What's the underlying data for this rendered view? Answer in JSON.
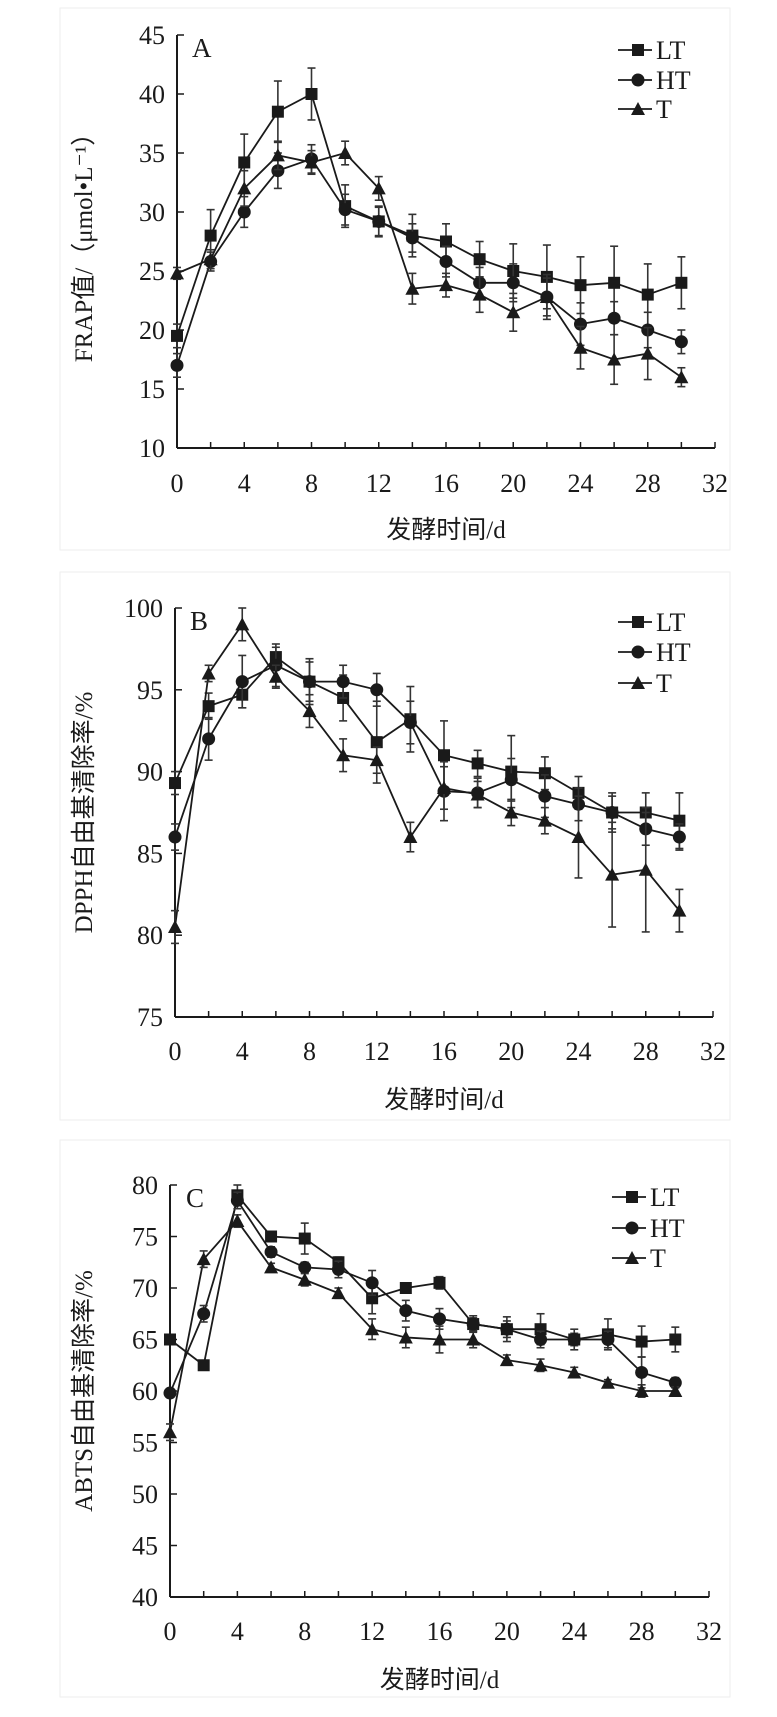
{
  "chart_data": [
    {
      "type": "line",
      "panel": "A",
      "title": "",
      "xlabel": "发酵时间/d",
      "ylabel": "FRAP值/（μmol•L⁻¹）",
      "xlim": [
        0,
        32
      ],
      "ylim": [
        10,
        45
      ],
      "xticks": [
        0,
        4,
        8,
        12,
        16,
        20,
        24,
        28,
        32
      ],
      "yticks": [
        10,
        15,
        20,
        25,
        30,
        35,
        40,
        45
      ],
      "legend_position": "top-right",
      "x": [
        0,
        2,
        4,
        6,
        8,
        10,
        12,
        14,
        16,
        18,
        20,
        22,
        24,
        26,
        28,
        30
      ],
      "series": [
        {
          "name": "LT",
          "marker": "square",
          "values": [
            19.5,
            28,
            34.2,
            38.5,
            40,
            30.5,
            29.2,
            28,
            27.5,
            26,
            25,
            24.5,
            23.8,
            24,
            23,
            24
          ],
          "errors": [
            1,
            2.2,
            2.4,
            2.6,
            2.2,
            1.8,
            1.2,
            1.8,
            1.5,
            1.5,
            2.3,
            2.7,
            2.4,
            3.1,
            2.6,
            2.2
          ]
        },
        {
          "name": "HT",
          "marker": "circle",
          "values": [
            17,
            25.8,
            30,
            33.5,
            34.5,
            30.2,
            29.2,
            27.8,
            25.8,
            24,
            24,
            22.8,
            20.5,
            21,
            20,
            19
          ],
          "errors": [
            1,
            0.8,
            1.3,
            1.5,
            1.2,
            1.3,
            1.3,
            1.2,
            1.3,
            1.3,
            1.6,
            1.9,
            1.8,
            1.4,
            1.5,
            1
          ]
        },
        {
          "name": "T",
          "marker": "triangle",
          "values": [
            24.8,
            26,
            32,
            34.8,
            34.2,
            35,
            32,
            23.5,
            23.8,
            23,
            21.5,
            22.8,
            18.5,
            17.5,
            18,
            16
          ],
          "errors": [
            0.5,
            0.8,
            1.5,
            1.2,
            1,
            1,
            1,
            1.3,
            1,
            1.5,
            1.6,
            1.6,
            1.8,
            2.1,
            2.2,
            0.8
          ]
        }
      ]
    },
    {
      "type": "line",
      "panel": "B",
      "title": "",
      "xlabel": "发酵时间/d",
      "ylabel": "DPPH自由基清除率/%",
      "xlim": [
        0,
        32
      ],
      "ylim": [
        75,
        100
      ],
      "xticks": [
        0,
        4,
        8,
        12,
        16,
        20,
        24,
        28,
        32
      ],
      "yticks": [
        75,
        80,
        85,
        90,
        95,
        100
      ],
      "legend_position": "top-right",
      "x": [
        0,
        2,
        4,
        6,
        8,
        10,
        12,
        14,
        16,
        18,
        20,
        22,
        24,
        26,
        28,
        30
      ],
      "series": [
        {
          "name": "LT",
          "marker": "square",
          "values": [
            89.3,
            94,
            94.7,
            97,
            95.5,
            94.5,
            91.8,
            93.2,
            91,
            90.5,
            90,
            89.9,
            88.7,
            87.5,
            87.5,
            87
          ],
          "errors": [
            0.7,
            0.8,
            0.8,
            0.6,
            1.4,
            1.4,
            2.5,
            2,
            2.1,
            0.8,
            2.2,
            1,
            1,
            1.2,
            1.2,
            1.7
          ]
        },
        {
          "name": "HT",
          "marker": "circle",
          "values": [
            86,
            92,
            95.5,
            96.5,
            95.5,
            95.5,
            95,
            93,
            88.8,
            88.7,
            89.5,
            88.5,
            88,
            87.5,
            86.5,
            86
          ],
          "errors": [
            0.8,
            1.3,
            1.6,
            1.3,
            1.2,
            1,
            1,
            1.3,
            1.8,
            0.9,
            1.3,
            1.3,
            1,
            1,
            1,
            0.8
          ]
        },
        {
          "name": "T",
          "marker": "triangle",
          "values": [
            80.5,
            96,
            99,
            95.8,
            93.7,
            91,
            90.7,
            86,
            89,
            88.6,
            87.5,
            87,
            86,
            83.7,
            84,
            81.5
          ],
          "errors": [
            1,
            0.5,
            1,
            0.7,
            1,
            1,
            0.8,
            0.9,
            1.3,
            0.8,
            0.8,
            0.8,
            2.5,
            3.2,
            3.8,
            1.3
          ]
        }
      ]
    },
    {
      "type": "line",
      "panel": "C",
      "title": "",
      "xlabel": "发酵时间/d",
      "ylabel": "ABTS自由基清除率/%",
      "xlim": [
        0,
        32
      ],
      "ylim": [
        40,
        80
      ],
      "xticks": [
        0,
        4,
        8,
        12,
        16,
        20,
        24,
        28,
        32
      ],
      "yticks": [
        40,
        45,
        50,
        55,
        60,
        65,
        70,
        75,
        80
      ],
      "legend_position": "top-right",
      "x": [
        0,
        2,
        4,
        6,
        8,
        10,
        12,
        14,
        16,
        18,
        20,
        22,
        24,
        26,
        28,
        30
      ],
      "series": [
        {
          "name": "LT",
          "marker": "square",
          "values": [
            65,
            62.5,
            79,
            75,
            74.8,
            72.5,
            69,
            70,
            70.5,
            66.5,
            66,
            66,
            65,
            65.5,
            64.8,
            65
          ],
          "errors": [
            0.4,
            0.4,
            1,
            0.5,
            1.5,
            0.5,
            1.5,
            0.4,
            0.6,
            0.8,
            1.2,
            1.5,
            1,
            1.5,
            1.5,
            1.2
          ]
        },
        {
          "name": "HT",
          "marker": "circle",
          "values": [
            59.8,
            67.5,
            78.5,
            73.5,
            72,
            71.8,
            70.5,
            67.8,
            67,
            66.5,
            66,
            65,
            65,
            65,
            61.8,
            60.8
          ],
          "errors": [
            0.4,
            0.8,
            0.8,
            0.5,
            0.5,
            0.8,
            1.2,
            1,
            1,
            0.6,
            0.8,
            0.8,
            0.6,
            0.8,
            1.5,
            0.5
          ]
        },
        {
          "name": "T",
          "marker": "triangle",
          "values": [
            56,
            72.8,
            76.5,
            72,
            70.8,
            69.5,
            66,
            65.2,
            65,
            65,
            63,
            62.5,
            61.8,
            60.8,
            60,
            60
          ],
          "errors": [
            0.8,
            0.8,
            0.6,
            0.4,
            0.6,
            0.5,
            1,
            1,
            1.3,
            0.8,
            0.5,
            0.6,
            0.5,
            0.3,
            0.6,
            0.4
          ]
        }
      ]
    }
  ],
  "colors": {
    "line": "#1a1a1a",
    "error_bar": "#333333",
    "frame": "#eeeeee"
  }
}
